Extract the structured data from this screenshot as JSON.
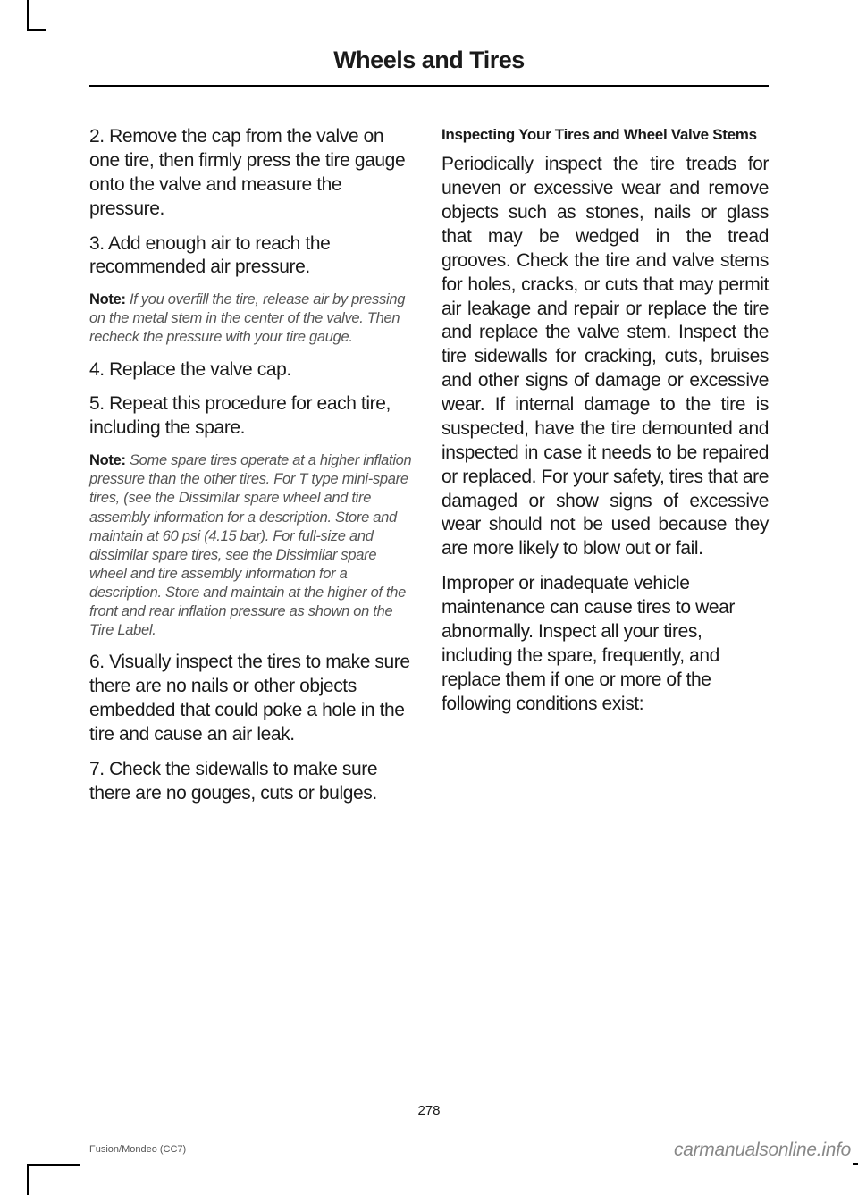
{
  "header_title": "Wheels and Tires",
  "left": {
    "p1": "2. Remove the cap from the valve on one tire, then firmly press the tire gauge onto the valve and measure the pressure.",
    "p2": "3. Add enough air to reach the recommended air pressure.",
    "note1_label": "Note:",
    "note1": " If you overfill the tire, release air by pressing on the metal stem in the center of the valve. Then recheck the pressure with your tire gauge.",
    "p3": "4. Replace the valve cap.",
    "p4": "5. Repeat this procedure for each tire, including the spare.",
    "note2_label": "Note:",
    "note2": " Some spare tires operate at a higher inflation pressure than the other tires. For T type mini-spare tires, (see the Dissimilar spare wheel and tire assembly information for a description. Store and maintain at 60 psi (4.15 bar). For full-size and dissimilar spare tires, see the Dissimilar spare wheel and tire assembly information for a description. Store and maintain at the higher of the front and rear inflation pressure as shown on the Tire Label.",
    "p5": "6. Visually inspect the tires to make sure there are no nails or other objects embedded that could poke a hole in the tire and cause an air leak.",
    "p6": "7. Check the sidewalls to make sure there are no gouges, cuts or bulges."
  },
  "right": {
    "subhead": "Inspecting Your Tires and Wheel Valve Stems",
    "p1": "Periodically inspect the tire treads for uneven or excessive wear and remove objects such as stones, nails or glass that may be wedged in the tread grooves. Check the tire and valve stems for holes, cracks, or cuts that may permit air leakage and repair or replace the tire and replace the valve stem. Inspect the tire sidewalls for cracking, cuts, bruises and other signs of damage or excessive wear. If internal damage to the tire is suspected, have the tire demounted and inspected in case it needs to be repaired or replaced. For your safety, tires that are damaged or show signs of excessive wear should not be used because they are more likely to blow out or fail.",
    "p2": "Improper or inadequate vehicle maintenance can cause tires to wear abnormally. Inspect all your tires, including the spare, frequently, and replace them if one or more of the following conditions exist:"
  },
  "page_number": "278",
  "footer_left": "Fusion/Mondeo (CC7)",
  "watermark": "carmanualsonline.info"
}
